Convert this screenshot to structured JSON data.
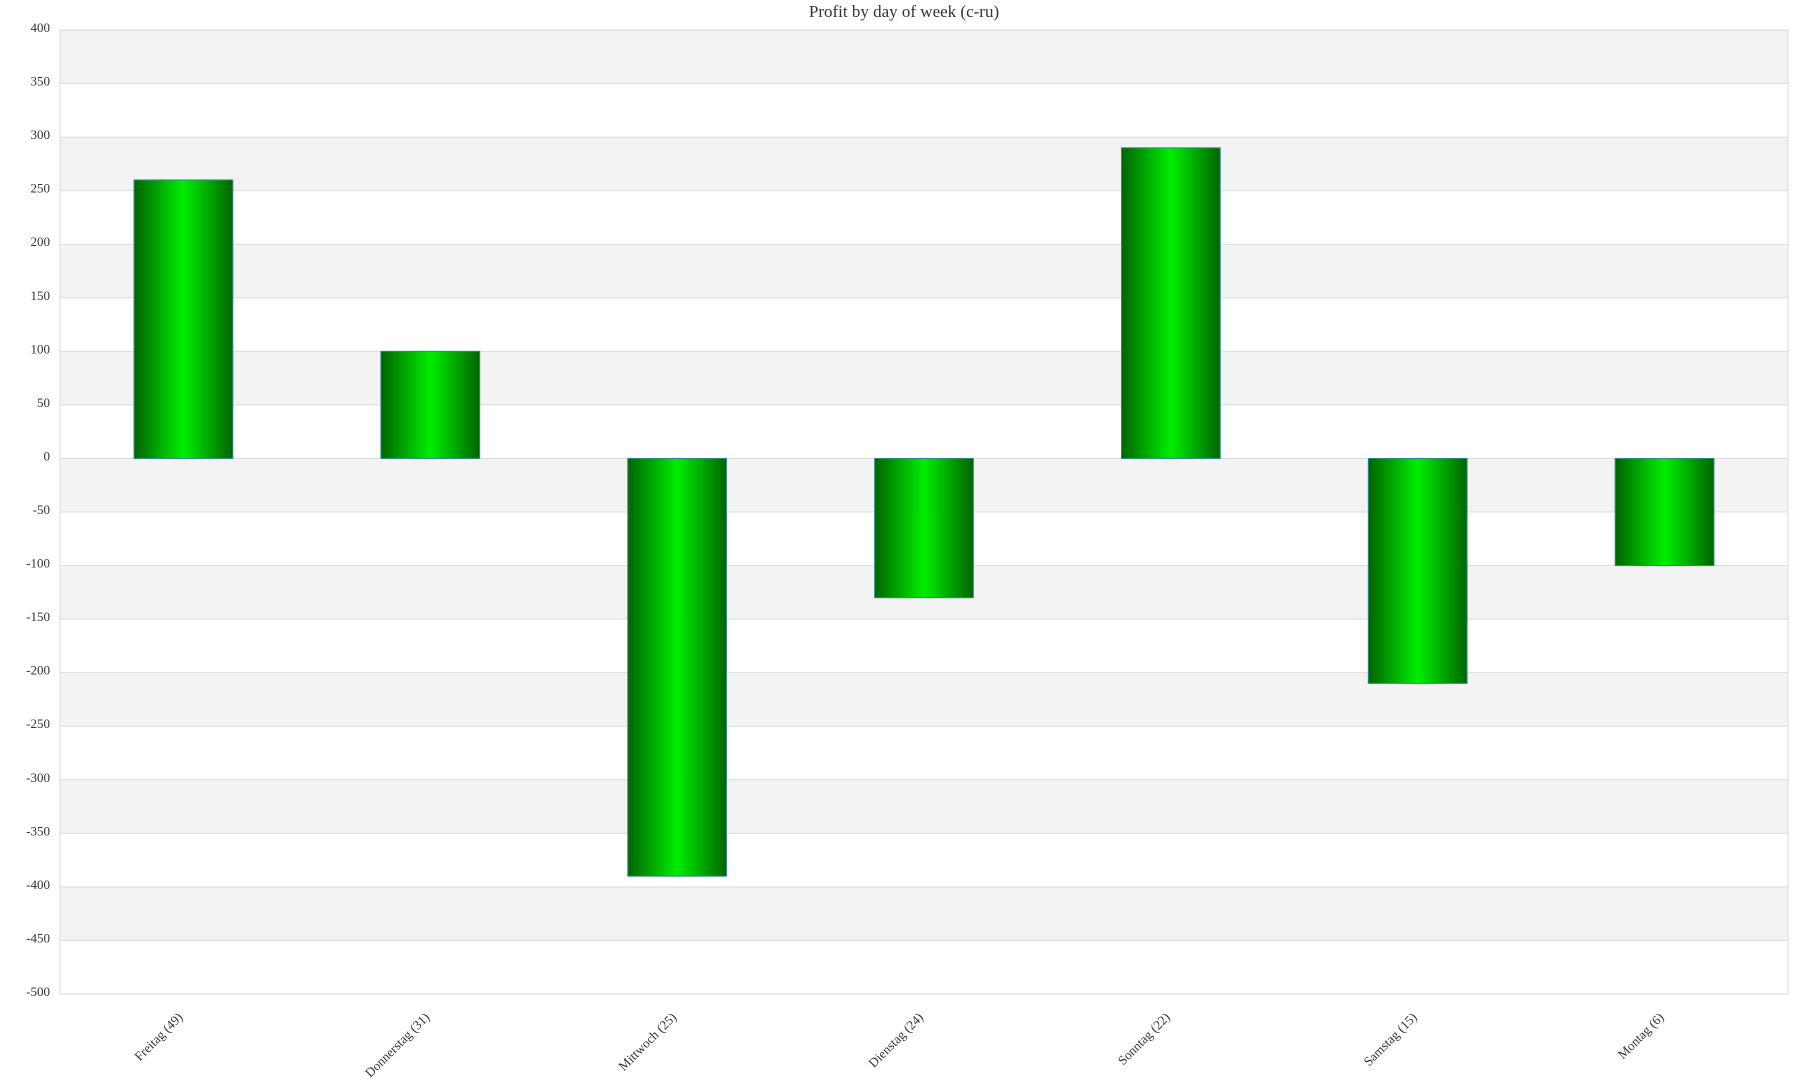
{
  "chart_data": {
    "type": "bar",
    "title": "Profit by day of week  (c-ru)",
    "categories": [
      "Freitag (49)",
      "Donnerstag (31)",
      "Mittwoch (25)",
      "Dienstag (24)",
      "Sonntag (22)",
      "Samstag (15)",
      "Montag (6)"
    ],
    "values": [
      260,
      100,
      -390,
      -130,
      290,
      -210,
      -100
    ],
    "color": "#00ee00",
    "ylim": [
      -500,
      400
    ],
    "yticks": [
      400,
      350,
      300,
      250,
      200,
      150,
      100,
      50,
      0,
      -50,
      -100,
      -150,
      -200,
      -250,
      -300,
      -350,
      -400,
      -450,
      -500
    ],
    "grid": true
  }
}
